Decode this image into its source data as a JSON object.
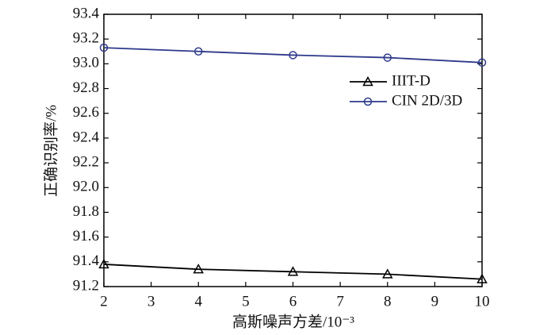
{
  "chart_data": {
    "type": "line",
    "x_label": "高斯噪声方差/10⁻³",
    "y_label": "正确识别率/%",
    "x": [
      2,
      4,
      6,
      8,
      10
    ],
    "series": [
      {
        "name": "IIIT-D",
        "color": "#000000",
        "marker": "triangle",
        "values": [
          91.38,
          91.34,
          91.32,
          91.3,
          91.26
        ]
      },
      {
        "name": "CIN 2D/3D",
        "color": "#2e3a8c",
        "marker": "circle",
        "values": [
          93.13,
          93.1,
          93.07,
          93.05,
          93.01
        ]
      }
    ],
    "xlim": [
      2,
      10
    ],
    "xticks": [
      2,
      3,
      4,
      5,
      6,
      7,
      8,
      9,
      10
    ],
    "ylim": [
      91.2,
      93.4
    ],
    "yticks": [
      91.2,
      91.4,
      91.6,
      91.8,
      {
        "value": 92,
        "label": "92.0"
      },
      92.2,
      92.4,
      92.6,
      92.8,
      {
        "value": 93,
        "label": "93.0"
      },
      93.2,
      93.4
    ],
    "legend": "upper right"
  }
}
